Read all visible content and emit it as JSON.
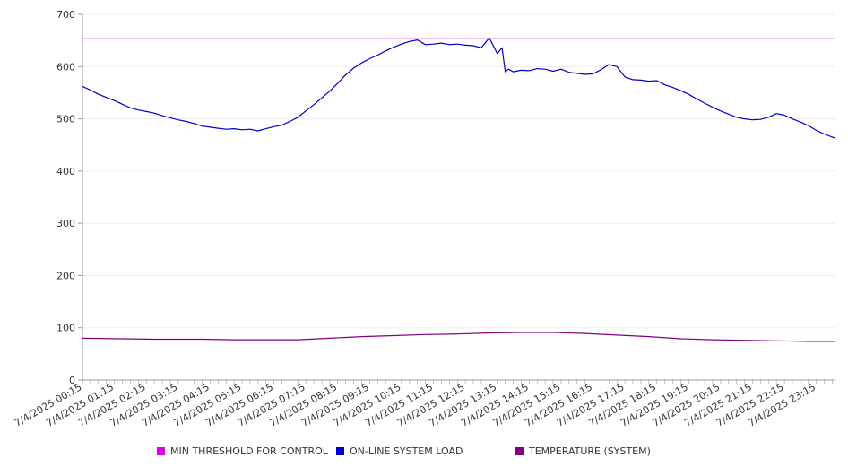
{
  "chart_data": {
    "type": "line",
    "ylim": [
      0,
      700
    ],
    "y_ticks": [
      0,
      100,
      200,
      300,
      400,
      500,
      600,
      700
    ],
    "x_tick_labels": [
      "7/4/2025 00:15",
      "7/4/2025 01:15",
      "7/4/2025 02:15",
      "7/4/2025 03:15",
      "7/4/2025 04:15",
      "7/4/2025 05:15",
      "7/4/2025 06:15",
      "7/4/2025 07:15",
      "7/4/2025 08:15",
      "7/4/2025 09:15",
      "7/4/2025 10:15",
      "7/4/2025 11:15",
      "7/4/2025 12:15",
      "7/4/2025 13:15",
      "7/4/2025 14:15",
      "7/4/2025 15:15",
      "7/4/2025 16:15",
      "7/4/2025 17:15",
      "7/4/2025 18:15",
      "7/4/2025 19:15",
      "7/4/2025 20:15",
      "7/4/2025 21:15",
      "7/4/2025 22:15",
      "7/4/2025 23:15"
    ],
    "x_hours": [
      0.25,
      23.85
    ],
    "grid": true,
    "legend_position": "bottom",
    "series": [
      {
        "name": "MIN THRESHOLD FOR CONTROL",
        "color": "#e000e0",
        "x": [
          0.25,
          23.85
        ],
        "values": [
          653,
          653
        ]
      },
      {
        "name": "ON-LINE SYSTEM LOAD",
        "color": "#0000cc",
        "x": [
          0.25,
          0.5,
          0.75,
          1.0,
          1.25,
          1.5,
          1.75,
          2.0,
          2.25,
          2.5,
          2.75,
          3.0,
          3.25,
          3.5,
          3.75,
          4.0,
          4.25,
          4.5,
          4.75,
          5.0,
          5.25,
          5.5,
          5.75,
          6.0,
          6.25,
          6.5,
          6.75,
          7.0,
          7.25,
          7.5,
          7.75,
          8.0,
          8.25,
          8.5,
          8.75,
          9.0,
          9.25,
          9.5,
          9.75,
          10.0,
          10.25,
          10.5,
          10.75,
          11.0,
          11.25,
          11.5,
          11.75,
          12.0,
          12.25,
          12.5,
          12.75,
          13.0,
          13.25,
          13.4,
          13.5,
          13.6,
          13.75,
          14.0,
          14.25,
          14.5,
          14.75,
          15.0,
          15.25,
          15.5,
          15.75,
          16.0,
          16.25,
          16.5,
          16.75,
          17.0,
          17.25,
          17.5,
          17.75,
          18.0,
          18.25,
          18.5,
          18.75,
          19.0,
          19.25,
          19.5,
          19.75,
          20.0,
          20.25,
          20.5,
          20.75,
          21.0,
          21.25,
          21.5,
          21.75,
          22.0,
          22.25,
          22.5,
          22.75,
          23.0,
          23.25,
          23.5,
          23.75,
          23.85
        ],
        "values": [
          562,
          555,
          547,
          541,
          535,
          528,
          521,
          517,
          514,
          511,
          506,
          502,
          498,
          495,
          491,
          486,
          484,
          482,
          480,
          481,
          479,
          480,
          477,
          481,
          485,
          488,
          495,
          503,
          515,
          527,
          540,
          553,
          568,
          584,
          597,
          607,
          615,
          622,
          630,
          637,
          643,
          648,
          651,
          642,
          643,
          645,
          642,
          643,
          641,
          640,
          636,
          655,
          625,
          636,
          590,
          595,
          590,
          593,
          592,
          596,
          595,
          591,
          595,
          589,
          587,
          585,
          586,
          594,
          604,
          600,
          580,
          575,
          574,
          572,
          573,
          565,
          560,
          554,
          547,
          538,
          530,
          522,
          515,
          509,
          503,
          500,
          498,
          499,
          503,
          510,
          507,
          500,
          494,
          487,
          478,
          471,
          465,
          463
        ]
      },
      {
        "name": "TEMPERATURE (SYSTEM)",
        "color": "#800080",
        "x": [
          0.25,
          1.5,
          2.5,
          4.0,
          5.0,
          6.0,
          7.0,
          8.0,
          9.0,
          10.0,
          11.0,
          12.0,
          13.0,
          14.0,
          15.0,
          16.0,
          17.0,
          18.0,
          19.0,
          20.0,
          21.0,
          22.0,
          23.0,
          23.85
        ],
        "values": [
          80,
          79,
          78,
          78,
          77,
          77,
          77,
          80,
          83,
          85,
          87,
          88,
          90,
          91,
          91,
          89,
          86,
          83,
          79,
          77,
          76,
          75,
          74,
          74
        ]
      }
    ]
  }
}
